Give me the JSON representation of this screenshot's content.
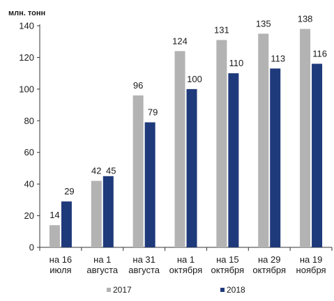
{
  "chart_data": {
    "type": "bar",
    "unit_label": "млн. тонн",
    "categories": [
      [
        "на 16",
        "июля"
      ],
      [
        "на 1",
        "августа"
      ],
      [
        "на 31",
        "августа"
      ],
      [
        "на 1",
        "октября"
      ],
      [
        "на 15",
        "октября"
      ],
      [
        "на 29",
        "октября"
      ],
      [
        "на 19",
        "ноября"
      ]
    ],
    "series": [
      {
        "name": "2017",
        "color": "#b3b3b3",
        "values": [
          14,
          42,
          96,
          124,
          131,
          135,
          138
        ]
      },
      {
        "name": "2018",
        "color": "#1f3a7a",
        "values": [
          29,
          45,
          79,
          100,
          110,
          113,
          116
        ]
      }
    ],
    "ylim": [
      0,
      140
    ],
    "yticks": [
      0,
      20,
      40,
      60,
      80,
      100,
      120,
      140
    ],
    "grid": false,
    "legend_position": "bottom"
  }
}
